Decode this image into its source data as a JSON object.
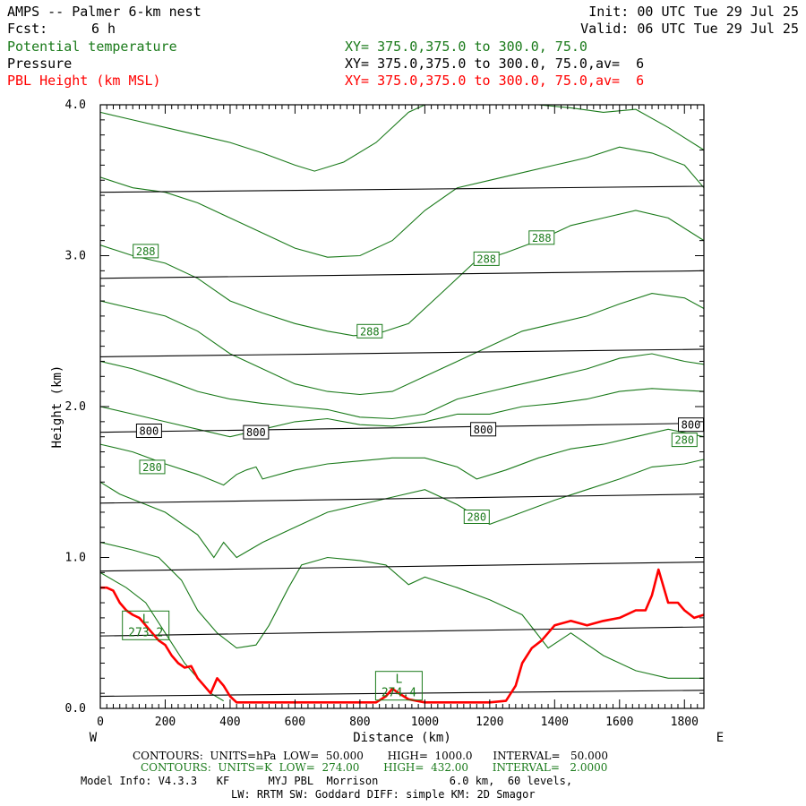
{
  "header": {
    "title": "AMPS -- Palmer 6-km nest",
    "init": "Init: 00 UTC Tue 29 Jul 25",
    "fcst_label": "Fcst:",
    "fcst_value": "6 h",
    "valid": "Valid: 06 UTC Tue 29 Jul 25",
    "var1": "Potential temperature",
    "var1_xy": "XY= 375.0,375.0 to 300.0, 75.0",
    "var2": "Pressure",
    "var2_xy": "XY= 375.0,375.0 to 300.0, 75.0,av=  6",
    "var3": "PBL Height (km MSL)",
    "var3_xy": "XY= 375.0,375.0 to 300.0, 75.0,av=  6"
  },
  "footer": {
    "contours_pressure": "CONTOURS:  UNITS=hPa  LOW=  50.000       HIGH=  1000.0      INTERVAL=   50.000",
    "contours_theta": "CONTOURS:  UNITS=K  LOW=  274.00       HIGH=  432.00       INTERVAL=   2.0000",
    "model_info": "Model Info: V4.3.3   KF      MYJ PBL  Morrison           6.0 km,  60 levels,",
    "model_info2": "LW: RRTM SW: Goddard DIFF: simple KM: 2D Smagor"
  },
  "colors": {
    "theta": "#1a7a1a",
    "pressure": "#000000",
    "pbl": "#ff0000"
  },
  "chart_data": {
    "type": "line",
    "xlabel": "Distance (km)",
    "ylabel": "Height (km)",
    "xlim": [
      0,
      1860
    ],
    "ylim": [
      0,
      4.0
    ],
    "x_ticks": [
      0,
      200,
      400,
      600,
      800,
      1000,
      1200,
      1400,
      1600,
      1800
    ],
    "y_ticks": [
      0.0,
      1.0,
      2.0,
      3.0,
      4.0
    ],
    "y_tick_labels": [
      "0.0",
      "1.0",
      "2.0",
      "3.0",
      "4.0"
    ],
    "x_end_labels": {
      "left": "W",
      "right": "E"
    },
    "pressure_isobars": [
      {
        "y0": 0.08,
        "y1": 0.12
      },
      {
        "y0": 0.48,
        "y1": 0.54
      },
      {
        "y0": 0.91,
        "y1": 0.97
      },
      {
        "y0": 1.36,
        "y1": 1.42
      },
      {
        "y0": 1.83,
        "y1": 1.89
      },
      {
        "y0": 2.33,
        "y1": 2.38
      },
      {
        "y0": 2.85,
        "y1": 2.9
      },
      {
        "y0": 3.42,
        "y1": 3.46
      }
    ],
    "theta_contours": [
      {
        "points": [
          [
            0,
            1.5
          ],
          [
            60,
            1.42
          ],
          [
            200,
            1.3
          ],
          [
            300,
            1.15
          ],
          [
            350,
            1.0
          ],
          [
            380,
            1.1
          ],
          [
            420,
            1.0
          ],
          [
            500,
            1.1
          ],
          [
            600,
            1.2
          ],
          [
            700,
            1.3
          ],
          [
            800,
            1.35
          ],
          [
            900,
            1.4
          ],
          [
            1000,
            1.45
          ],
          [
            1100,
            1.35
          ],
          [
            1200,
            1.22
          ],
          [
            1300,
            1.3
          ],
          [
            1400,
            1.38
          ],
          [
            1500,
            1.45
          ],
          [
            1600,
            1.52
          ],
          [
            1700,
            1.6
          ],
          [
            1800,
            1.62
          ],
          [
            1860,
            1.65
          ]
        ]
      },
      {
        "points": [
          [
            0,
            1.75
          ],
          [
            100,
            1.7
          ],
          [
            200,
            1.62
          ],
          [
            300,
            1.55
          ],
          [
            380,
            1.48
          ],
          [
            420,
            1.55
          ],
          [
            450,
            1.58
          ],
          [
            480,
            1.6
          ],
          [
            500,
            1.52
          ],
          [
            600,
            1.58
          ],
          [
            700,
            1.62
          ],
          [
            800,
            1.64
          ],
          [
            900,
            1.66
          ],
          [
            1000,
            1.66
          ],
          [
            1100,
            1.6
          ],
          [
            1160,
            1.52
          ],
          [
            1250,
            1.58
          ],
          [
            1350,
            1.66
          ],
          [
            1450,
            1.72
          ],
          [
            1550,
            1.75
          ],
          [
            1650,
            1.8
          ],
          [
            1750,
            1.85
          ],
          [
            1860,
            1.8
          ]
        ]
      },
      {
        "points": [
          [
            0,
            2.0
          ],
          [
            100,
            1.95
          ],
          [
            200,
            1.9
          ],
          [
            300,
            1.85
          ],
          [
            400,
            1.8
          ],
          [
            500,
            1.85
          ],
          [
            600,
            1.9
          ],
          [
            700,
            1.92
          ],
          [
            800,
            1.88
          ],
          [
            900,
            1.87
          ],
          [
            1000,
            1.9
          ],
          [
            1100,
            1.95
          ],
          [
            1200,
            1.95
          ],
          [
            1300,
            2.0
          ],
          [
            1400,
            2.02
          ],
          [
            1500,
            2.05
          ],
          [
            1600,
            2.1
          ],
          [
            1700,
            2.12
          ],
          [
            1860,
            2.1
          ]
        ]
      },
      {
        "points": [
          [
            0,
            2.3
          ],
          [
            100,
            2.25
          ],
          [
            200,
            2.18
          ],
          [
            300,
            2.1
          ],
          [
            400,
            2.05
          ],
          [
            500,
            2.02
          ],
          [
            600,
            2.0
          ],
          [
            700,
            1.98
          ],
          [
            800,
            1.93
          ],
          [
            900,
            1.92
          ],
          [
            1000,
            1.95
          ],
          [
            1100,
            2.05
          ],
          [
            1200,
            2.1
          ],
          [
            1300,
            2.15
          ],
          [
            1400,
            2.2
          ],
          [
            1500,
            2.25
          ],
          [
            1600,
            2.32
          ],
          [
            1700,
            2.35
          ],
          [
            1800,
            2.3
          ],
          [
            1860,
            2.28
          ]
        ]
      },
      {
        "points": [
          [
            0,
            2.7
          ],
          [
            100,
            2.65
          ],
          [
            200,
            2.6
          ],
          [
            300,
            2.5
          ],
          [
            400,
            2.35
          ],
          [
            500,
            2.25
          ],
          [
            600,
            2.15
          ],
          [
            700,
            2.1
          ],
          [
            800,
            2.08
          ],
          [
            900,
            2.1
          ],
          [
            1000,
            2.2
          ],
          [
            1100,
            2.3
          ],
          [
            1200,
            2.4
          ],
          [
            1300,
            2.5
          ],
          [
            1400,
            2.55
          ],
          [
            1500,
            2.6
          ],
          [
            1600,
            2.68
          ],
          [
            1700,
            2.75
          ],
          [
            1800,
            2.72
          ],
          [
            1860,
            2.65
          ]
        ]
      },
      {
        "points": [
          [
            0,
            3.07
          ],
          [
            100,
            3.0
          ],
          [
            200,
            2.95
          ],
          [
            300,
            2.85
          ],
          [
            400,
            2.7
          ],
          [
            500,
            2.62
          ],
          [
            600,
            2.55
          ],
          [
            700,
            2.5
          ],
          [
            780,
            2.47
          ],
          [
            850,
            2.48
          ],
          [
            950,
            2.55
          ],
          [
            1050,
            2.75
          ],
          [
            1150,
            2.95
          ],
          [
            1250,
            3.02
          ],
          [
            1350,
            3.1
          ],
          [
            1450,
            3.2
          ],
          [
            1550,
            3.25
          ],
          [
            1650,
            3.3
          ],
          [
            1750,
            3.25
          ],
          [
            1860,
            3.1
          ]
        ]
      },
      {
        "points": [
          [
            0,
            3.52
          ],
          [
            100,
            3.45
          ],
          [
            200,
            3.42
          ],
          [
            300,
            3.35
          ],
          [
            400,
            3.25
          ],
          [
            500,
            3.15
          ],
          [
            600,
            3.05
          ],
          [
            700,
            2.99
          ],
          [
            800,
            3.0
          ],
          [
            900,
            3.1
          ],
          [
            1000,
            3.3
          ],
          [
            1100,
            3.45
          ],
          [
            1200,
            3.5
          ],
          [
            1300,
            3.55
          ],
          [
            1400,
            3.6
          ],
          [
            1500,
            3.65
          ],
          [
            1600,
            3.72
          ],
          [
            1700,
            3.68
          ],
          [
            1800,
            3.6
          ],
          [
            1860,
            3.45
          ]
        ]
      },
      {
        "points": [
          [
            0,
            3.95
          ],
          [
            100,
            3.9
          ],
          [
            200,
            3.85
          ],
          [
            300,
            3.8
          ],
          [
            400,
            3.75
          ],
          [
            500,
            3.68
          ],
          [
            600,
            3.6
          ],
          [
            660,
            3.56
          ],
          [
            750,
            3.62
          ],
          [
            850,
            3.75
          ],
          [
            950,
            3.95
          ],
          [
            1000,
            4.0
          ]
        ]
      },
      {
        "points": [
          [
            1350,
            4.0
          ],
          [
            1450,
            3.98
          ],
          [
            1550,
            3.95
          ],
          [
            1650,
            3.97
          ],
          [
            1750,
            3.85
          ],
          [
            1860,
            3.7
          ]
        ]
      },
      {
        "points": [
          [
            0,
            1.1
          ],
          [
            100,
            1.05
          ],
          [
            180,
            1.0
          ],
          [
            250,
            0.85
          ],
          [
            300,
            0.65
          ],
          [
            360,
            0.5
          ],
          [
            420,
            0.4
          ],
          [
            480,
            0.42
          ],
          [
            520,
            0.55
          ],
          [
            580,
            0.8
          ],
          [
            620,
            0.95
          ],
          [
            700,
            1.0
          ],
          [
            800,
            0.98
          ],
          [
            880,
            0.95
          ],
          [
            950,
            0.82
          ],
          [
            1000,
            0.87
          ],
          [
            1100,
            0.8
          ],
          [
            1200,
            0.72
          ],
          [
            1300,
            0.62
          ],
          [
            1380,
            0.4
          ],
          [
            1450,
            0.5
          ],
          [
            1550,
            0.35
          ],
          [
            1650,
            0.25
          ],
          [
            1750,
            0.2
          ],
          [
            1860,
            0.2
          ]
        ]
      },
      {
        "points": [
          [
            0,
            0.9
          ],
          [
            80,
            0.8
          ],
          [
            140,
            0.7
          ],
          [
            200,
            0.5
          ],
          [
            260,
            0.3
          ],
          [
            300,
            0.2
          ],
          [
            340,
            0.1
          ],
          [
            380,
            0.05
          ]
        ]
      }
    ],
    "pbl_height": {
      "x": [
        0,
        20,
        40,
        60,
        80,
        100,
        120,
        140,
        160,
        180,
        200,
        220,
        240,
        260,
        280,
        300,
        320,
        340,
        360,
        380,
        400,
        420,
        450,
        500,
        600,
        700,
        800,
        850,
        880,
        900,
        920,
        950,
        1000,
        1100,
        1200,
        1250,
        1280,
        1300,
        1330,
        1360,
        1400,
        1450,
        1500,
        1550,
        1600,
        1650,
        1680,
        1700,
        1720,
        1750,
        1780,
        1800,
        1830,
        1860
      ],
      "values": [
        0.8,
        0.8,
        0.78,
        0.7,
        0.65,
        0.62,
        0.6,
        0.55,
        0.5,
        0.45,
        0.42,
        0.35,
        0.3,
        0.27,
        0.28,
        0.2,
        0.15,
        0.1,
        0.2,
        0.15,
        0.08,
        0.04,
        0.04,
        0.04,
        0.04,
        0.04,
        0.04,
        0.04,
        0.08,
        0.13,
        0.1,
        0.06,
        0.04,
        0.04,
        0.04,
        0.05,
        0.15,
        0.3,
        0.4,
        0.45,
        0.55,
        0.58,
        0.55,
        0.58,
        0.6,
        0.65,
        0.65,
        0.75,
        0.92,
        0.7,
        0.7,
        0.65,
        0.6,
        0.62
      ]
    },
    "pressure_labels": [
      {
        "text": "800",
        "x": 150,
        "y": 1.84
      },
      {
        "text": "800",
        "x": 480,
        "y": 1.83
      },
      {
        "text": "800",
        "x": 1180,
        "y": 1.85
      },
      {
        "text": "800",
        "x": 1820,
        "y": 1.88
      }
    ],
    "theta_labels": [
      {
        "text": "288",
        "x": 140,
        "y": 3.03
      },
      {
        "text": "288",
        "x": 830,
        "y": 2.5
      },
      {
        "text": "288",
        "x": 1190,
        "y": 2.98
      },
      {
        "text": "288",
        "x": 1360,
        "y": 3.12
      },
      {
        "text": "280",
        "x": 160,
        "y": 1.6
      },
      {
        "text": "280",
        "x": 1160,
        "y": 1.27
      },
      {
        "text": "280",
        "x": 1800,
        "y": 1.78
      }
    ],
    "lows": [
      {
        "mark": "L",
        "value": "273.2",
        "x": 140,
        "y": 0.55
      },
      {
        "mark": "L",
        "value": "274.4",
        "x": 920,
        "y": 0.15
      }
    ]
  }
}
